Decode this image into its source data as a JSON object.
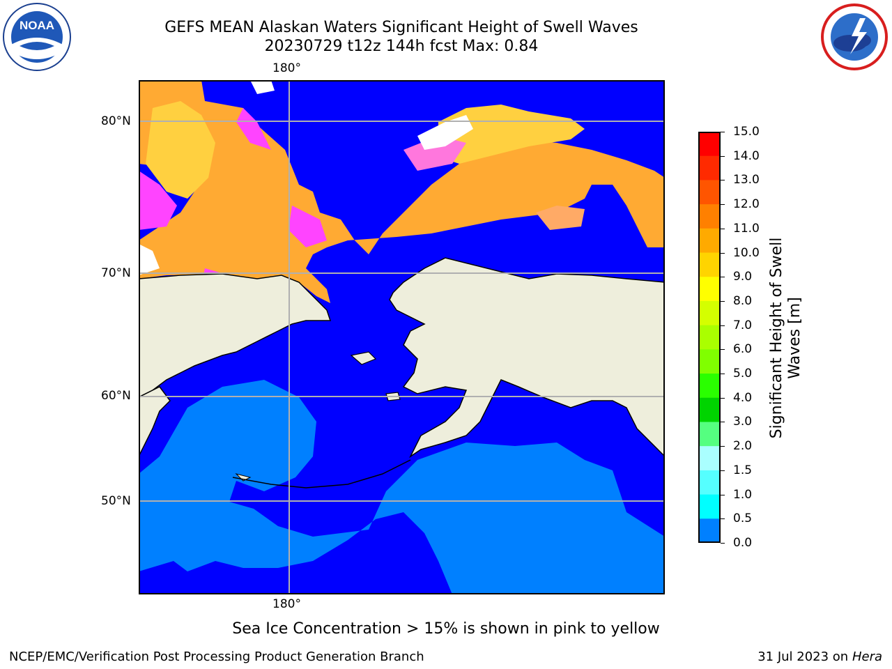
{
  "header": {
    "title_line1": "GEFS MEAN Alaskan Waters Significant Height of Swell Waves",
    "title_line2": "20230729 t12z 144h fcst   Max: 0.84",
    "left_logo": {
      "icon": "noaa-logo",
      "text": "NOAA"
    },
    "right_logo": {
      "icon": "nws-logo"
    }
  },
  "map": {
    "top_longitude_label": "180°",
    "bottom_longitude_label": "180°",
    "latitude_labels": [
      "80°N",
      "70°N",
      "60°N",
      "50°N"
    ],
    "colors": {
      "land": "#eeeedc",
      "ocean_low": "#0000ff",
      "ocean_mid": "#0080ff",
      "ice_pink": "#ff44ff",
      "ice_orange": "#ffaa33",
      "ice_yellow": "#ffd040",
      "grid": "#b0b0b0"
    }
  },
  "colorbar": {
    "title_line1": "Significant Height of Swell",
    "title_line2": "Waves [m]",
    "tick_labels": [
      "15.0",
      "14.0",
      "13.0",
      "12.0",
      "11.0",
      "10.0",
      "9.0",
      "8.0",
      "7.0",
      "6.0",
      "5.0",
      "4.0",
      "3.0",
      "2.0",
      "1.5",
      "1.0",
      "0.5",
      "0.0"
    ],
    "colors": [
      "#ff0000",
      "#ff2a00",
      "#ff5500",
      "#ff8000",
      "#ffaa00",
      "#ffd400",
      "#ffff00",
      "#d4ff00",
      "#aaff00",
      "#80ff00",
      "#2aff00",
      "#00d400",
      "#55ff80",
      "#aaffff",
      "#55ffff",
      "#00ffff",
      "#0080ff",
      "#0000ff"
    ]
  },
  "note": "Sea Ice Concentration > 15% is shown in pink to yellow",
  "footer": {
    "left": "NCEP/EMC/Verification Post Processing Product Generation Branch",
    "right_prefix": "31 Jul 2023 on ",
    "right_host": "Hera"
  }
}
